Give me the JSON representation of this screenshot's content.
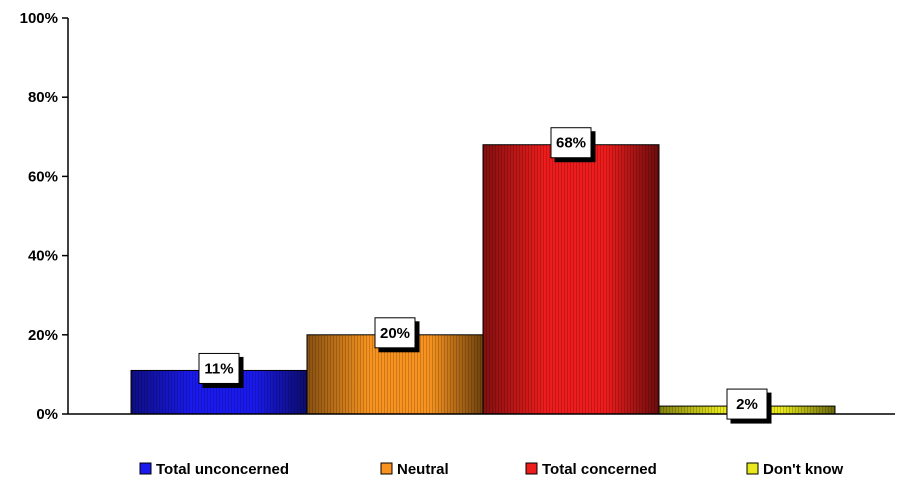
{
  "chart_data": {
    "type": "bar",
    "categories": [
      "Total unconcerned",
      "Neutral",
      "Total concerned",
      "Don't know"
    ],
    "series": [
      {
        "values": [
          11,
          20,
          68,
          2
        ]
      }
    ],
    "data_labels": [
      "11%",
      "20%",
      "68%",
      "2%"
    ],
    "ylim": [
      0,
      100
    ],
    "yticks": [
      0,
      20,
      40,
      60,
      80,
      100
    ],
    "ytick_labels": [
      "0%",
      "20%",
      "40%",
      "60%",
      "80%",
      "100%"
    ],
    "colors": [
      "#1a1aee",
      "#f7931e",
      "#ee1c1c",
      "#e8e81c"
    ],
    "legend": {
      "placement": "bottom",
      "entries": [
        "Total unconcerned",
        "Neutral",
        "Total concerned",
        "Don't know"
      ]
    },
    "grid": false
  }
}
